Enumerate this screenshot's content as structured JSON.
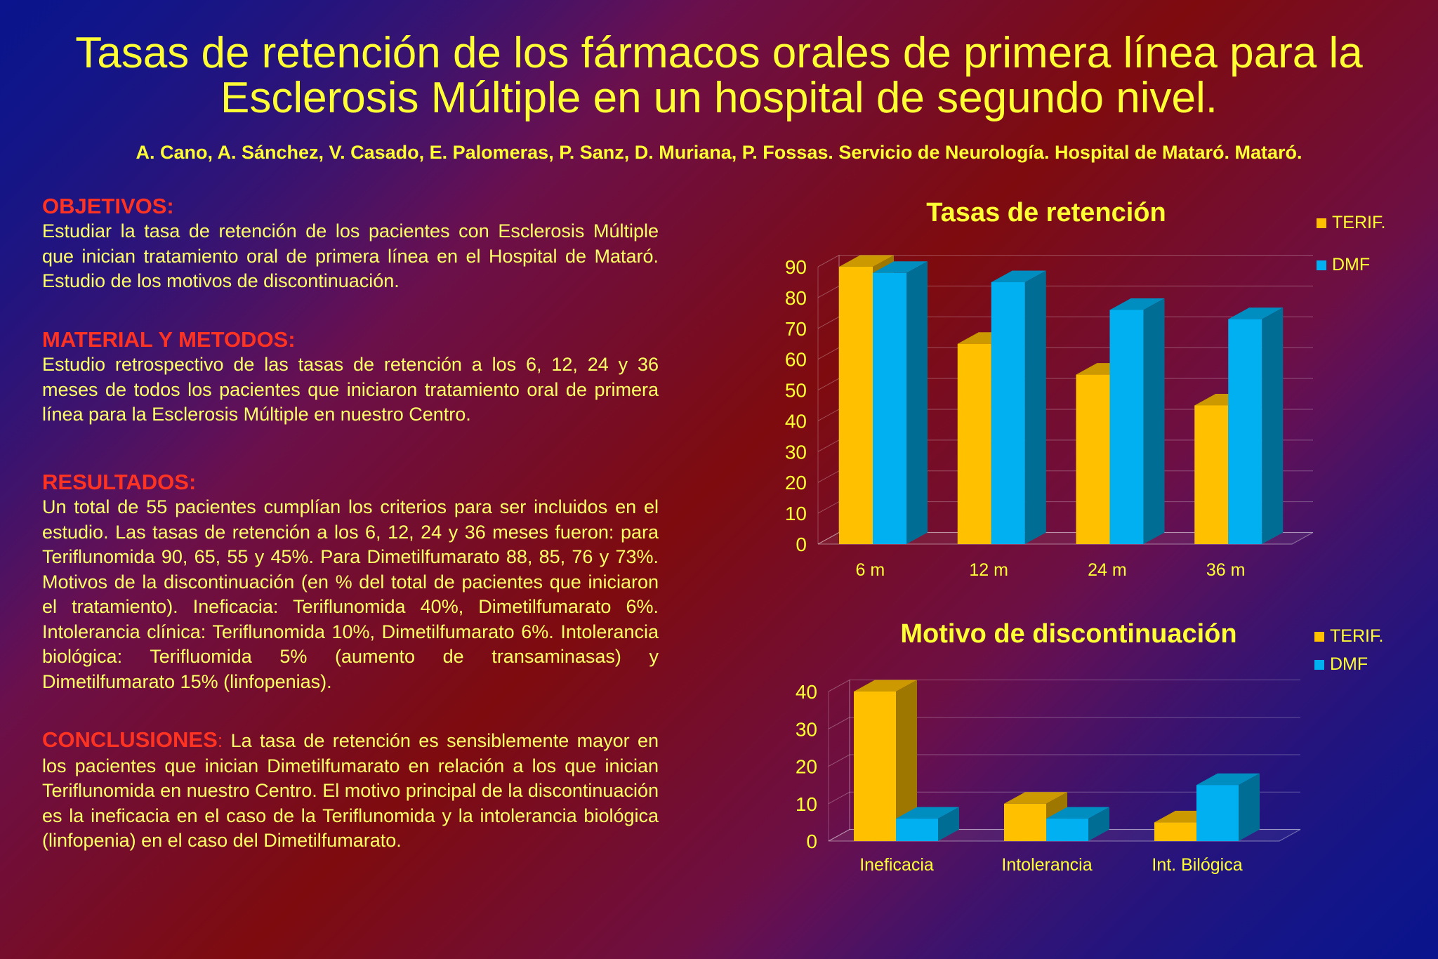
{
  "header": {
    "title": "Tasas de retención de los fármacos orales de primera línea para la Esclerosis Múltiple en un hospital de segundo nivel.",
    "authors": "A. Cano, A. Sánchez, V. Casado, E. Palomeras, P. Sanz, D. Muriana, P. Fossas. Servicio de Neurología. Hospital de Mataró. Mataró."
  },
  "sections": {
    "objetivos": {
      "heading": "OBJETIVOS:",
      "text": "Estudiar la tasa de retención de los pacientes con Esclerosis Múltiple que inician tratamiento oral de primera línea en el Hospital de Mataró. Estudio de los motivos de discontinuación."
    },
    "material": {
      "heading": "MATERIAL Y METODOS:",
      "text": "Estudio retrospectivo de las tasas de retención a los 6, 12, 24 y 36 meses de todos los pacientes que iniciaron tratamiento oral de primera línea para la Esclerosis Múltiple en nuestro Centro."
    },
    "resultados": {
      "heading": "RESULTADOS:",
      "text": "Un total de 55 pacientes cumplían los criterios para ser incluidos en el estudio. Las tasas de retención a los 6, 12, 24 y 36 meses fueron: para Teriflunomida 90, 65, 55 y 45%. Para Dimetilfumarato 88, 85, 76 y 73%. Motivos de la discontinuación (en % del total de pacientes que iniciaron el tratamiento). Ineficacia: Teriflunomida 40%, Dimetilfumarato 6%. Intolerancia clínica: Teriflunomida 10%, Dimetilfumarato 6%. Intolerancia biológica: Terifluomida 5% (aumento de transaminasas) y Dimetilfumarato 15% (linfopenias)."
    },
    "conclusiones": {
      "heading": "CONCLUSIONES",
      "colon": ":",
      "text": " La tasa de retención es sensiblemente mayor en los pacientes que inician Dimetilfumarato en relación a los que inician Teriflunomida en nuestro Centro. El motivo principal de la discontinuación es la ineficacia en el caso de la Teriflunomida y la intolerancia biológica (linfopenia) en el caso del Dimetilfumarato."
    }
  },
  "colors": {
    "terif": "#ffc000",
    "dmf": "#00b0f0",
    "text": "#ffff33",
    "heading": "#ff3322"
  },
  "chart_data": [
    {
      "type": "bar",
      "title": "Tasas de retención",
      "categories": [
        "6 m",
        "12 m",
        "24 m",
        "36 m"
      ],
      "series": [
        {
          "name": "TERIF.",
          "values": [
            90,
            65,
            55,
            45
          ]
        },
        {
          "name": "DMF",
          "values": [
            88,
            85,
            76,
            73
          ]
        }
      ],
      "ylim": [
        0,
        90
      ],
      "yticks": [
        0,
        10,
        20,
        30,
        40,
        50,
        60,
        70,
        80,
        90
      ],
      "legend": "right",
      "grid": true
    },
    {
      "type": "bar",
      "title": "Motivo de discontinuación",
      "categories": [
        "Ineficacia",
        "Intolerancia",
        "Int. Bilógica"
      ],
      "series": [
        {
          "name": "TERIF.",
          "values": [
            40,
            10,
            5
          ]
        },
        {
          "name": "DMF",
          "values": [
            6,
            6,
            15
          ]
        }
      ],
      "ylim": [
        0,
        40
      ],
      "yticks": [
        0,
        10,
        20,
        30,
        40
      ],
      "legend": "right",
      "grid": true
    }
  ]
}
